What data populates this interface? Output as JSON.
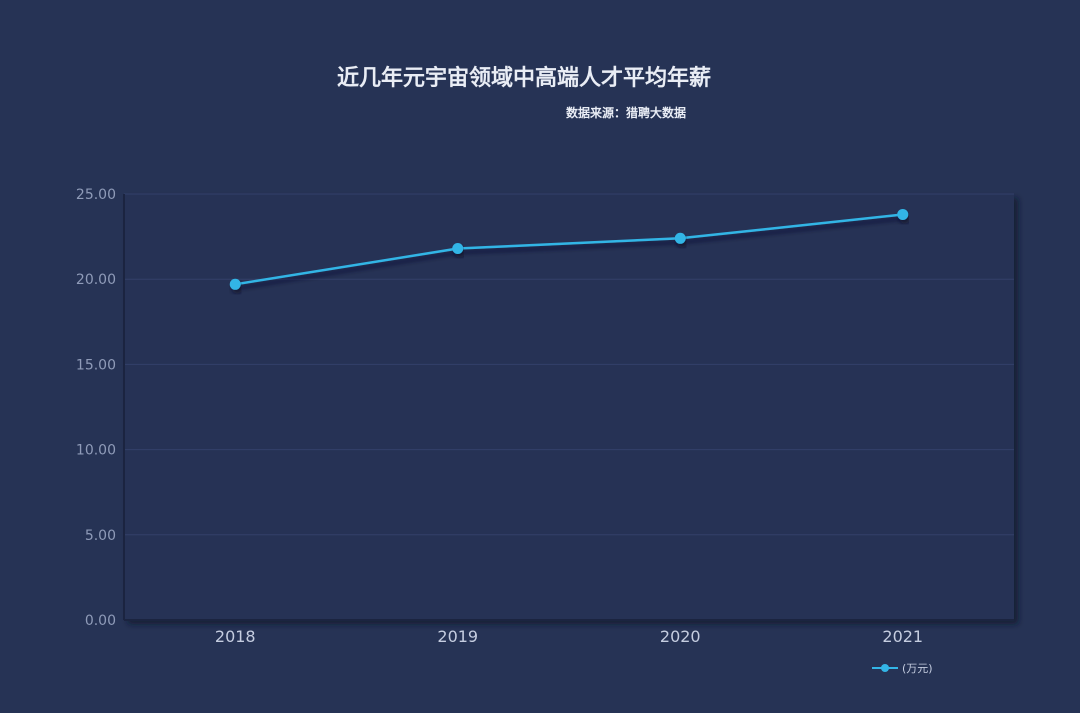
{
  "header": {
    "title": "近几年元宇宙领域中高端人才平均年薪",
    "source": "数据来源：猎聘大数据"
  },
  "colors": {
    "background": "#263355",
    "plot_background": "#253254",
    "line": "#33b5e6",
    "grid": "#33406a",
    "axis_text": "#8f9bb8",
    "x_text": "#c5cde0"
  },
  "chart_data": {
    "type": "line",
    "title": "近几年元宇宙领域中高端人才平均年薪",
    "subtitle": "数据来源：猎聘大数据",
    "categories": [
      "2018",
      "2019",
      "2020",
      "2021"
    ],
    "series": [
      {
        "name": "(万元)",
        "values": [
          19.7,
          21.8,
          22.4,
          23.8
        ]
      }
    ],
    "ylim": [
      0,
      25
    ],
    "yticks": [
      "0.00",
      "5.00",
      "10.00",
      "15.00",
      "20.00",
      "25.00"
    ],
    "grid": true,
    "legend": "bottom-right"
  }
}
